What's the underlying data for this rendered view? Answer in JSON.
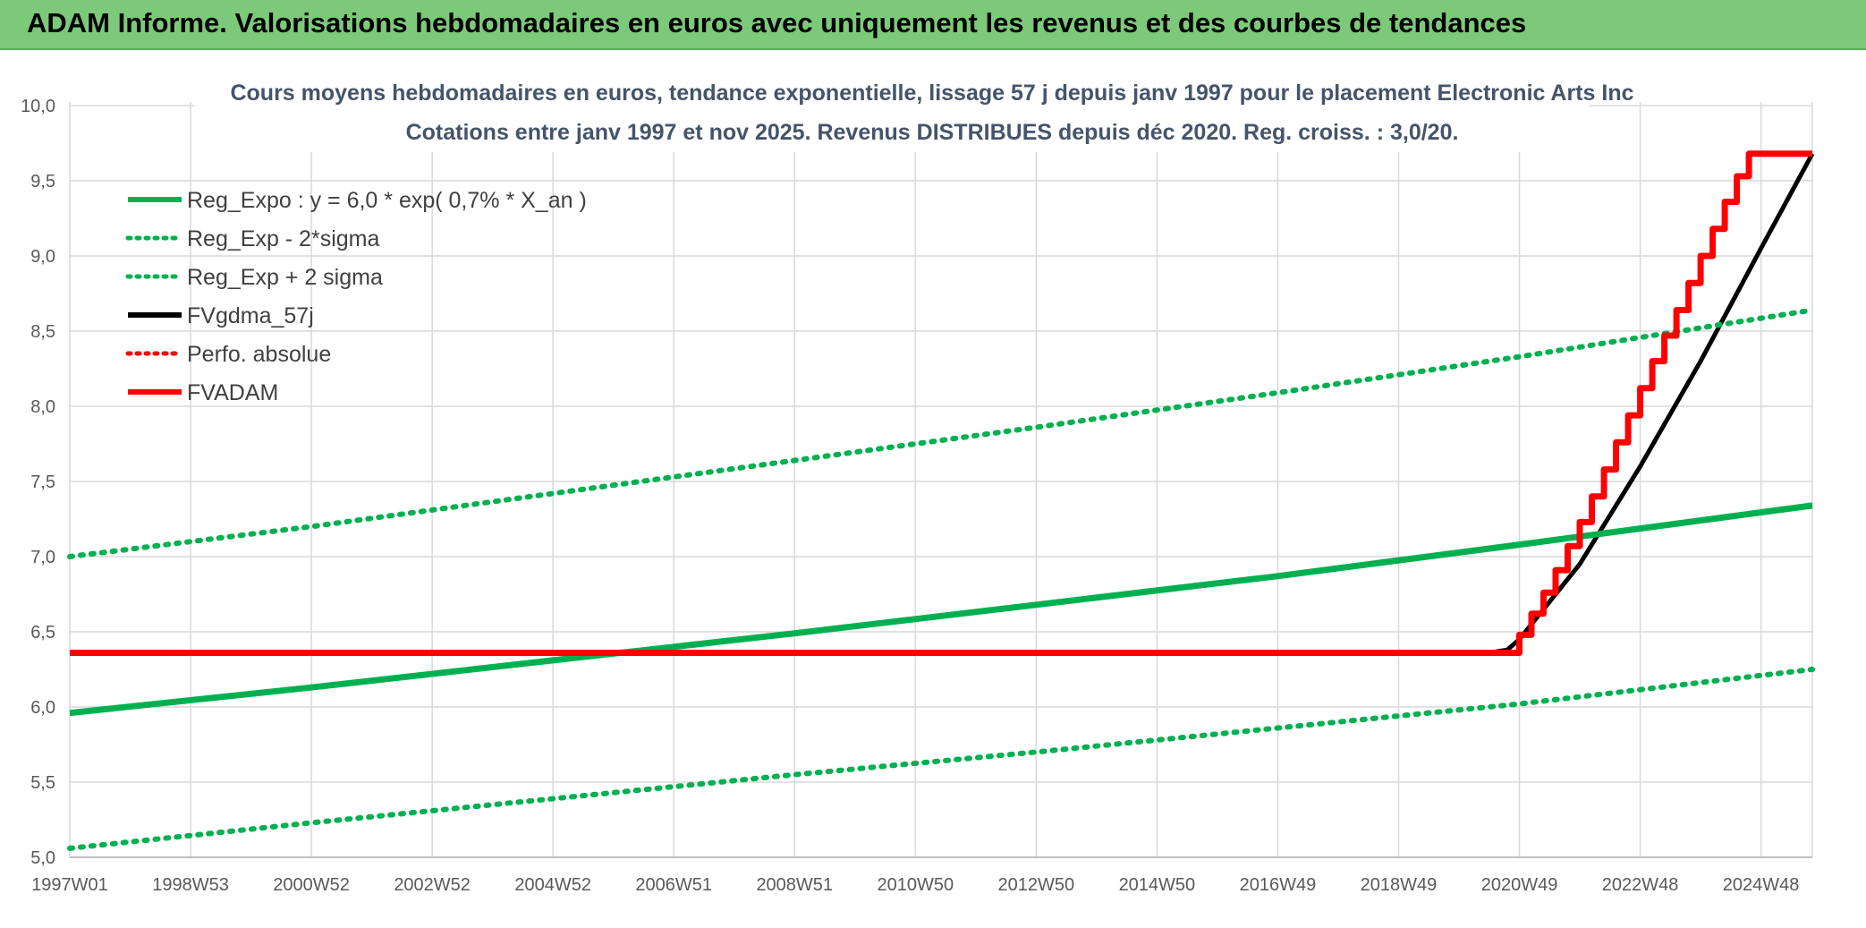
{
  "banner": {
    "title": "ADAM Informe. Valorisations hebdomadaires en euros avec uniquement les revenus et des courbes de tendances"
  },
  "colors": {
    "banner_bg": "#7dc97a",
    "green": "#00b050",
    "red": "#ff0000",
    "black": "#000000",
    "grid": "#d9d9d9"
  },
  "chart_data": {
    "type": "line",
    "title": "Cours moyens hebdomadaires en euros, tendance exponentielle, lissage 57 j depuis janv 1997 pour le placement Electronic Arts Inc",
    "subtitle": "Cotations entre janv 1997 et nov 2025. Revenus DISTRIBUES depuis déc 2020. Reg. croiss. : 3,0/20.",
    "xlabel": "",
    "ylabel": "",
    "x_range": [
      1997.0,
      2025.85
    ],
    "ylim": [
      5.0,
      10.0
    ],
    "y_ticks": [
      "5,0",
      "5,5",
      "6,0",
      "6,5",
      "7,0",
      "7,5",
      "8,0",
      "8,5",
      "9,0",
      "9,5",
      "10,0"
    ],
    "x_ticks": [
      {
        "label": "1997W01",
        "x": 1997.0
      },
      {
        "label": "1998W53",
        "x": 1999.0
      },
      {
        "label": "2000W52",
        "x": 2001.0
      },
      {
        "label": "2002W52",
        "x": 2003.0
      },
      {
        "label": "2004W52",
        "x": 2005.0
      },
      {
        "label": "2006W51",
        "x": 2007.0
      },
      {
        "label": "2008W51",
        "x": 2009.0
      },
      {
        "label": "2010W50",
        "x": 2011.0
      },
      {
        "label": "2012W50",
        "x": 2013.0
      },
      {
        "label": "2014W50",
        "x": 2015.0
      },
      {
        "label": "2016W49",
        "x": 2017.0
      },
      {
        "label": "2018W49",
        "x": 2019.0
      },
      {
        "label": "2020W49",
        "x": 2021.0
      },
      {
        "label": "2022W48",
        "x": 2023.0
      },
      {
        "label": "2024W48",
        "x": 2025.0
      }
    ],
    "grid": true,
    "legend_position": "top-left",
    "series": [
      {
        "name": "Reg_Expo : y = 6,0 * exp( 0,7% *  X_an )",
        "color": "#00b050",
        "style": "solid",
        "x": [
          1997.0,
          2001.0,
          2005.0,
          2009.0,
          2013.0,
          2017.0,
          2021.0,
          2025.85
        ],
        "y": [
          5.96,
          6.13,
          6.31,
          6.49,
          6.68,
          6.87,
          7.08,
          7.34
        ]
      },
      {
        "name": "Reg_Exp - 2*sigma",
        "color": "#00b050",
        "style": "dotted",
        "x": [
          1997.0,
          2001.0,
          2005.0,
          2009.0,
          2013.0,
          2017.0,
          2021.0,
          2025.85
        ],
        "y": [
          5.06,
          5.23,
          5.39,
          5.55,
          5.7,
          5.86,
          6.02,
          6.25
        ]
      },
      {
        "name": "Reg_Exp + 2 sigma",
        "color": "#00b050",
        "style": "dotted",
        "x": [
          1997.0,
          2001.0,
          2005.0,
          2009.0,
          2013.0,
          2017.0,
          2021.0,
          2025.85
        ],
        "y": [
          7.0,
          7.2,
          7.42,
          7.64,
          7.86,
          8.09,
          8.33,
          8.64
        ]
      },
      {
        "name": "FVgdma_57j",
        "color": "#000000",
        "style": "solid",
        "x": [
          1997.0,
          2020.5,
          2020.8,
          2021.0,
          2022.0,
          2023.0,
          2024.0,
          2025.0,
          2025.85
        ],
        "y": [
          6.36,
          6.36,
          6.38,
          6.45,
          6.95,
          7.6,
          8.3,
          9.05,
          9.68
        ]
      },
      {
        "name": "Perfo. absolue",
        "color": "#ff0000",
        "style": "dotted",
        "x": [],
        "y": []
      },
      {
        "name": "FVADAM",
        "color": "#ff0000",
        "style": "step",
        "x": [
          1997.0,
          2021.0,
          2021.0,
          2021.2,
          2021.2,
          2021.4,
          2021.4,
          2021.6,
          2021.6,
          2021.8,
          2021.8,
          2022.0,
          2022.0,
          2022.2,
          2022.2,
          2022.4,
          2022.4,
          2022.6,
          2022.6,
          2022.8,
          2022.8,
          2023.0,
          2023.0,
          2023.2,
          2023.2,
          2023.4,
          2023.4,
          2023.6,
          2023.6,
          2023.8,
          2023.8,
          2024.0,
          2024.0,
          2024.2,
          2024.2,
          2024.4,
          2024.4,
          2024.6,
          2024.6,
          2024.8,
          2024.8,
          2025.0,
          2025.0,
          2025.2,
          2025.2,
          2025.4,
          2025.4,
          2025.6,
          2025.6,
          2025.85
        ],
        "y": [
          6.36,
          6.36,
          6.48,
          6.48,
          6.62,
          6.62,
          6.76,
          6.76,
          6.91,
          6.91,
          7.07,
          7.07,
          7.23,
          7.23,
          7.4,
          7.4,
          7.58,
          7.58,
          7.76,
          7.76,
          7.94,
          7.94,
          8.12,
          8.12,
          8.3,
          8.3,
          8.47,
          8.47,
          8.64,
          8.64,
          8.82,
          8.82,
          9.0,
          9.0,
          9.18,
          9.18,
          9.36,
          9.36,
          9.53,
          9.53,
          9.68,
          9.68,
          9.68,
          9.68,
          9.68,
          9.68,
          9.68,
          9.68,
          9.68,
          9.68
        ]
      }
    ]
  }
}
